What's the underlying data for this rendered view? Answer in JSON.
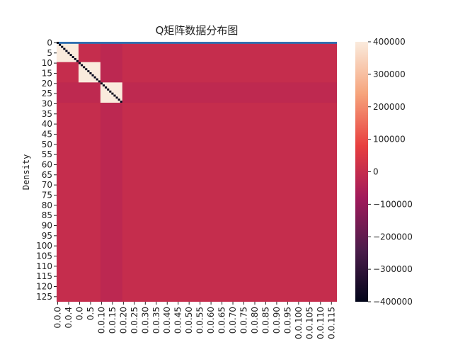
{
  "chart_data": {
    "type": "heatmap",
    "title": "Q矩阵数据分布图",
    "xlabel": "",
    "ylabel": "Density",
    "n_rows": 128,
    "n_cols": 128,
    "y_tick_labels": [
      "0",
      "5",
      "10",
      "15",
      "20",
      "25",
      "30",
      "35",
      "40",
      "45",
      "50",
      "55",
      "60",
      "65",
      "70",
      "75",
      "80",
      "85",
      "90",
      "95",
      "100",
      "105",
      "110",
      "115",
      "120",
      "125"
    ],
    "x_tick_labels": [
      "0.0.0",
      "0.0.4",
      "0.0",
      "0.5",
      "0.0.10",
      "0.0.15",
      "0.0.20",
      "0.0.25",
      "0.0.30",
      "0.0.35",
      "0.0.40",
      "0.0.45",
      "0.0.50",
      "0.0.55",
      "0.0.60",
      "0.0.65",
      "0.0.70",
      "0.0.75",
      "0.0.80",
      "0.0.85",
      "0.0.90",
      "0.0.95",
      "0.0.100",
      "0.0.105",
      "0.0.110",
      "0.0.115"
    ],
    "background_value": 0,
    "blocks": [
      {
        "rows": [
          0,
          9
        ],
        "cols": [
          0,
          9
        ],
        "value": 400000
      },
      {
        "rows": [
          10,
          19
        ],
        "cols": [
          10,
          19
        ],
        "value": 400000
      },
      {
        "rows": [
          20,
          29
        ],
        "cols": [
          20,
          29
        ],
        "value": 400000
      }
    ],
    "block_column_band": {
      "cols": [
        20,
        29
      ],
      "value": -20000
    },
    "block_row_band": {
      "rows": [
        20,
        29
      ],
      "value": -15000
    },
    "diagonal_rows": [
      0,
      29
    ],
    "diagonal_value": -400000,
    "top_row_value": -400000,
    "colorbar": {
      "vmin": -400000,
      "vmax": 400000,
      "ticks": [
        {
          "value": 400000,
          "label": "400000"
        },
        {
          "value": 300000,
          "label": "300000"
        },
        {
          "value": 200000,
          "label": "200000"
        },
        {
          "value": 100000,
          "label": "100000"
        },
        {
          "value": 0,
          "label": "0"
        },
        {
          "value": -100000,
          "label": "−100000"
        },
        {
          "value": -200000,
          "label": "−200000"
        },
        {
          "value": -300000,
          "label": "−300000"
        },
        {
          "value": -400000,
          "label": "−400000"
        }
      ],
      "stops": [
        "#03051a",
        "#4c1d4b",
        "#a11a5b",
        "#e83f3f",
        "#f6a47c",
        "#faebdd"
      ]
    }
  }
}
